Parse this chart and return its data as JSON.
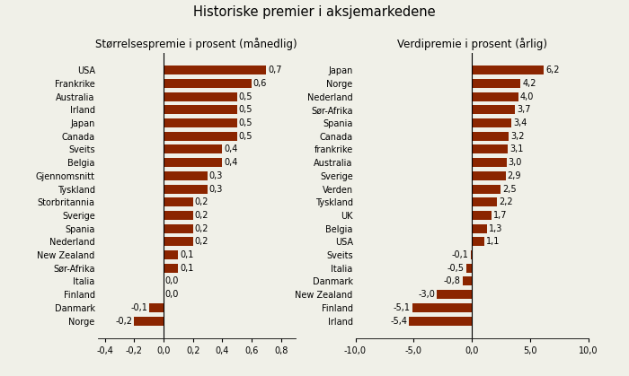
{
  "title": "Historiske premier i aksjemarkedene",
  "left_subtitle": "Størrelsespremie i prosent (månedlig)",
  "right_subtitle": "Verdipremie i prosent (årlig)",
  "left_categories": [
    "USA",
    "Frankrike",
    "Australia",
    "Irland",
    "Japan",
    "Canada",
    "Sveits",
    "Belgia",
    "Gjennomsnitt",
    "Tyskland",
    "Storbritannia",
    "Sverige",
    "Spania",
    "Nederland",
    "New Zealand",
    "Sør-Afrika",
    "Italia",
    "Finland",
    "Danmark",
    "Norge"
  ],
  "left_values": [
    0.7,
    0.6,
    0.5,
    0.5,
    0.5,
    0.5,
    0.4,
    0.4,
    0.3,
    0.3,
    0.2,
    0.2,
    0.2,
    0.2,
    0.1,
    0.1,
    0.0,
    0.0,
    -0.1,
    -0.2
  ],
  "right_categories": [
    "Japan",
    "Norge",
    "Nederland",
    "Sør-Afrika",
    "Spania",
    "Canada",
    "frankrike",
    "Australia",
    "Sverige",
    "Verden",
    "Tyskland",
    "UK",
    "Belgia",
    "USA",
    "Sveits",
    "Italia",
    "Danmark",
    "New Zealand",
    "Finland",
    "Irland"
  ],
  "right_values": [
    6.2,
    4.2,
    4.0,
    3.7,
    3.4,
    3.2,
    3.1,
    3.0,
    2.9,
    2.5,
    2.2,
    1.7,
    1.3,
    1.1,
    -0.1,
    -0.5,
    -0.8,
    -3.0,
    -5.1,
    -5.4
  ],
  "bar_color": "#8B2500",
  "background_color": "#f0f0e8",
  "left_xlim": [
    -0.45,
    0.9
  ],
  "right_xlim": [
    -10.0,
    10.0
  ],
  "left_xticks": [
    -0.4,
    -0.2,
    0.0,
    0.2,
    0.4,
    0.6,
    0.8
  ],
  "right_xticks": [
    -10.0,
    -5.0,
    0.0,
    5.0,
    10.0
  ],
  "title_fontsize": 10.5,
  "subtitle_fontsize": 8.5,
  "label_fontsize": 7,
  "tick_fontsize": 7,
  "value_fontsize": 7
}
